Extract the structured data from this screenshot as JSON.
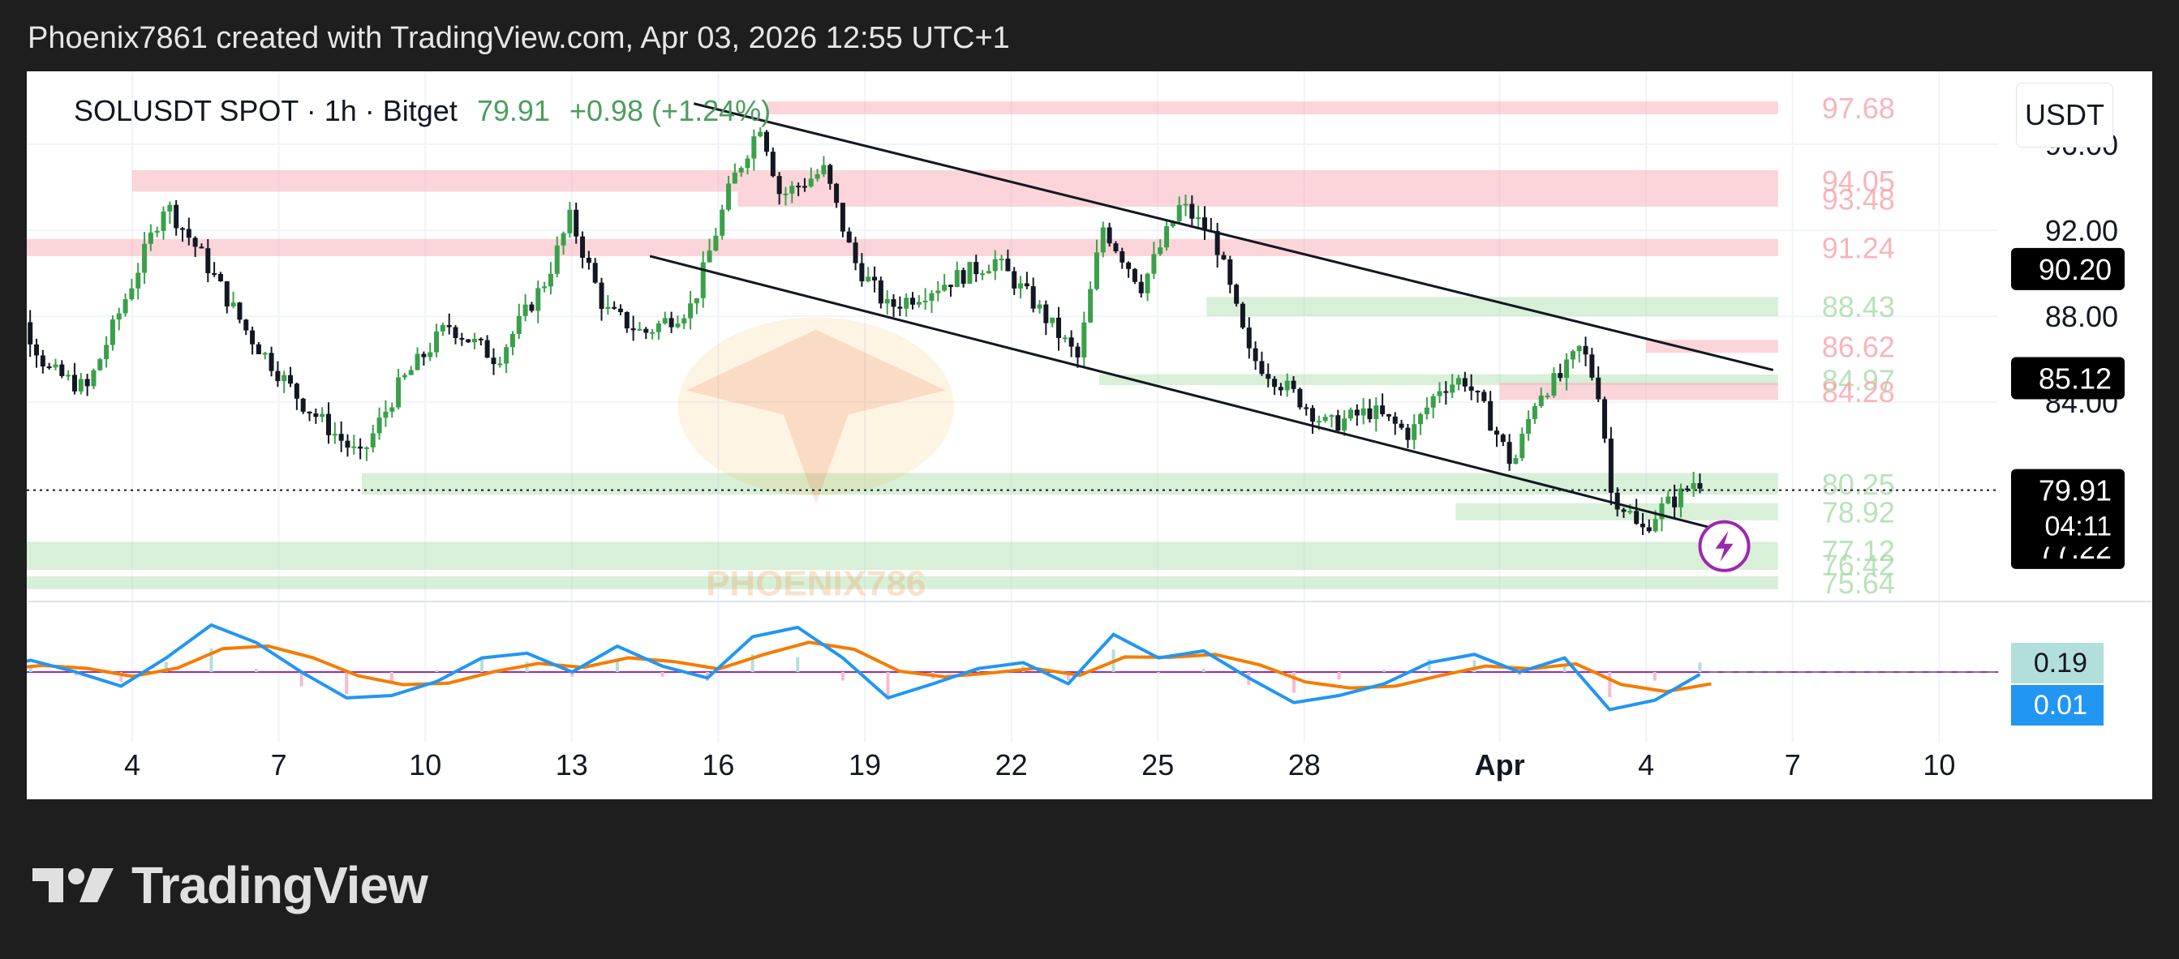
{
  "caption": "Phoenix7861 created with TradingView.com, Apr 03, 2026 12:55 UTC+1",
  "legend": {
    "symbol": "SOLUSDT SPOT · 1h · Bitget",
    "last_price": "79.91",
    "change": "+0.98 (+1.24%)"
  },
  "currency_label": "USDT",
  "brand": "TradingView",
  "watermark_text": "PHOENIX786",
  "colors": {
    "up": "#26a69a",
    "candle_up": "#3aa04a",
    "candle_down": "#131722",
    "resistance_zone": "#f7a1aa",
    "support_zone": "#a8dba8",
    "macd_line": "#2196f3",
    "signal_line": "#f57c00",
    "alert_icon": "#9c27b0"
  },
  "chart_data": {
    "type": "candlestick",
    "title": "SOLUSDT SPOT · 1h · Bitget",
    "x_tick_labels": [
      "4",
      "7",
      "10",
      "13",
      "16",
      "19",
      "22",
      "25",
      "28",
      "Apr",
      "4",
      "7",
      "10"
    ],
    "x_tick_days": [
      4,
      7,
      10,
      13,
      16,
      19,
      22,
      25,
      28,
      32,
      35,
      38,
      41
    ],
    "y_axis_ticks": [
      84,
      88,
      92,
      96
    ],
    "y_axis_tick_labels": [
      "84.00",
      "88.00",
      "92.00",
      "96.00"
    ],
    "ylim": [
      74.8,
      99.4
    ],
    "price_path": [
      {
        "day": 1.0,
        "price": 84.2
      },
      {
        "day": 1.7,
        "price": 88.6
      },
      {
        "day": 2.4,
        "price": 85.5
      },
      {
        "day": 3.2,
        "price": 84.6
      },
      {
        "day": 4.3,
        "price": 90.5
      },
      {
        "day": 4.8,
        "price": 93.3
      },
      {
        "day": 5.5,
        "price": 91.0
      },
      {
        "day": 6.5,
        "price": 87.2
      },
      {
        "day": 7.6,
        "price": 84.0
      },
      {
        "day": 8.8,
        "price": 81.4
      },
      {
        "day": 9.6,
        "price": 84.8
      },
      {
        "day": 10.6,
        "price": 87.6
      },
      {
        "day": 11.6,
        "price": 86.0
      },
      {
        "day": 12.6,
        "price": 89.7
      },
      {
        "day": 13.1,
        "price": 92.6
      },
      {
        "day": 13.8,
        "price": 88.3
      },
      {
        "day": 14.6,
        "price": 87.2
      },
      {
        "day": 15.6,
        "price": 88.5
      },
      {
        "day": 16.4,
        "price": 94.2
      },
      {
        "day": 17.0,
        "price": 97.0
      },
      {
        "day": 17.4,
        "price": 93.6
      },
      {
        "day": 18.3,
        "price": 94.8
      },
      {
        "day": 18.9,
        "price": 90.6
      },
      {
        "day": 19.6,
        "price": 88.4
      },
      {
        "day": 20.7,
        "price": 89.5
      },
      {
        "day": 21.8,
        "price": 90.6
      },
      {
        "day": 22.6,
        "price": 88.6
      },
      {
        "day": 23.5,
        "price": 86.0
      },
      {
        "day": 24.0,
        "price": 92.2
      },
      {
        "day": 24.8,
        "price": 89.4
      },
      {
        "day": 25.6,
        "price": 93.2
      },
      {
        "day": 26.3,
        "price": 91.6
      },
      {
        "day": 27.0,
        "price": 86.2
      },
      {
        "day": 27.9,
        "price": 84.4
      },
      {
        "day": 28.6,
        "price": 82.9
      },
      {
        "day": 29.5,
        "price": 83.6
      },
      {
        "day": 30.3,
        "price": 82.5
      },
      {
        "day": 30.9,
        "price": 84.7
      },
      {
        "day": 31.4,
        "price": 85.1
      },
      {
        "day": 31.9,
        "price": 83.3
      },
      {
        "day": 32.4,
        "price": 81.0
      },
      {
        "day": 32.9,
        "price": 84.4
      },
      {
        "day": 33.4,
        "price": 85.2
      },
      {
        "day": 33.8,
        "price": 86.6
      },
      {
        "day": 34.2,
        "price": 84.2
      },
      {
        "day": 34.4,
        "price": 79.8
      },
      {
        "day": 34.8,
        "price": 78.8
      },
      {
        "day": 35.0,
        "price": 77.9
      },
      {
        "day": 35.4,
        "price": 79.0
      },
      {
        "day": 35.8,
        "price": 79.6
      },
      {
        "day": 36.1,
        "price": 80.3
      }
    ],
    "trendlines": [
      {
        "name": "channel-upper",
        "from": {
          "day": 15.5,
          "price": 97.9
        },
        "to": {
          "day": 37.6,
          "price": 85.5
        }
      },
      {
        "name": "channel-lower",
        "from": {
          "day": 14.6,
          "price": 90.8
        },
        "to": {
          "day": 36.6,
          "price": 78.0
        }
      }
    ],
    "zones": [
      {
        "kind": "resistance",
        "from_day": 17.0,
        "to_day": 37.7,
        "low": 97.4,
        "high": 98.0,
        "label": "97.68"
      },
      {
        "kind": "resistance",
        "from_day": 4.0,
        "to_day": 37.7,
        "low": 93.8,
        "high": 94.8,
        "label": "94.05"
      },
      {
        "kind": "resistance",
        "from_day": 16.4,
        "to_day": 37.7,
        "low": 93.1,
        "high": 93.8,
        "label": "93.48"
      },
      {
        "kind": "resistance",
        "from_day": 1.0,
        "to_day": 37.7,
        "low": 90.8,
        "high": 91.6,
        "label": "91.24"
      },
      {
        "kind": "support",
        "from_day": 26.0,
        "to_day": 37.7,
        "low": 88.0,
        "high": 88.9,
        "label": "88.43"
      },
      {
        "kind": "resistance",
        "from_day": 35.0,
        "to_day": 37.7,
        "low": 86.3,
        "high": 86.9,
        "label": "86.62"
      },
      {
        "kind": "support",
        "from_day": 23.8,
        "to_day": 37.7,
        "low": 84.8,
        "high": 85.3,
        "label": "84.97"
      },
      {
        "kind": "resistance",
        "from_day": 32.0,
        "to_day": 37.7,
        "low": 84.1,
        "high": 84.9,
        "label": "84.28"
      },
      {
        "kind": "support",
        "from_day": 8.7,
        "to_day": 37.7,
        "low": 79.7,
        "high": 80.7,
        "label": "80.25"
      },
      {
        "kind": "support",
        "from_day": 31.1,
        "to_day": 37.7,
        "low": 78.5,
        "high": 79.3,
        "label": "78.92"
      },
      {
        "kind": "support",
        "from_day": 1.0,
        "to_day": 37.7,
        "low": 76.7,
        "high": 77.5,
        "label": "77.12"
      },
      {
        "kind": "support",
        "from_day": 1.0,
        "to_day": 37.7,
        "low": 76.2,
        "high": 76.7,
        "label": "76.42"
      },
      {
        "kind": "support",
        "from_day": 1.0,
        "to_day": 37.7,
        "low": 75.3,
        "high": 75.9,
        "label": "75.64"
      }
    ],
    "price_badges": [
      {
        "price": 90.2,
        "label": "90.20"
      },
      {
        "price": 85.12,
        "label": "85.12"
      },
      {
        "price": 77.22,
        "label": "77.22"
      }
    ],
    "last_price_marker": {
      "price": 79.91,
      "label": "79.91",
      "countdown": "04:11"
    },
    "macd": {
      "ylim": [
        -0.6,
        0.6
      ],
      "zero": 0,
      "values": [
        0.02,
        0.1,
        0.0,
        -0.12,
        0.12,
        0.4,
        0.25,
        0.0,
        -0.22,
        -0.2,
        -0.08,
        0.12,
        0.16,
        0.0,
        0.22,
        0.05,
        -0.05,
        0.3,
        0.38,
        0.12,
        -0.22,
        -0.1,
        0.03,
        0.08,
        -0.1,
        0.32,
        0.12,
        0.18,
        -0.05,
        -0.26,
        -0.2,
        -0.1,
        0.08,
        0.15,
        0.0,
        0.12,
        -0.32,
        -0.24,
        -0.02
      ],
      "badge_macd": "0.19",
      "badge_signal": "0.01"
    }
  }
}
